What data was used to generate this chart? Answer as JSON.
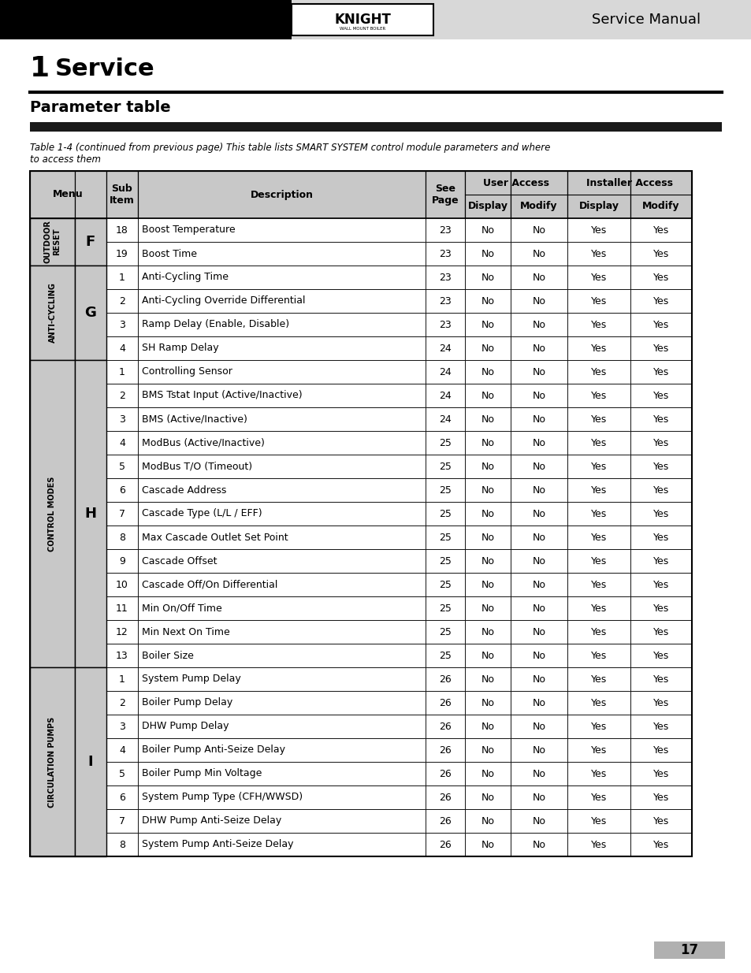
{
  "page_title": "1   Service",
  "section_title": "Parameter table",
  "table_caption": "Table 1-4 (continued from previous page) This table lists SMART SYSTEM control module parameters and where\nto access them",
  "header_bg": "#d0d0d0",
  "alt_row_bg": "#ffffff",
  "logo_text": "KNIGHT",
  "header_right": "Service Manual",
  "page_number": "17",
  "col_headers": [
    "Menu",
    "Sub\nItem",
    "Description",
    "See\nPage",
    "Display",
    "Modify",
    "Display",
    "Modify"
  ],
  "col_span_headers": [
    {
      "text": "User Access",
      "cols": [
        4,
        5
      ]
    },
    {
      "text": "Installer Access",
      "cols": [
        6,
        7
      ]
    }
  ],
  "rows": [
    {
      "menu": "OUTDOOR\nRESET",
      "sub_letter": "F",
      "sub_num": "18",
      "desc": "Boost Temperature",
      "page": "23",
      "ud": "No",
      "um": "No",
      "id": "Yes",
      "im": "Yes",
      "menu_span": 2,
      "letter_span": 2
    },
    {
      "menu": "",
      "sub_letter": "",
      "sub_num": "19",
      "desc": "Boost Time",
      "page": "23",
      "ud": "No",
      "um": "No",
      "id": "Yes",
      "im": "Yes",
      "menu_span": 0,
      "letter_span": 0
    },
    {
      "menu": "ANTI-CYCLING",
      "sub_letter": "G",
      "sub_num": "1",
      "desc": "Anti-Cycling Time",
      "page": "23",
      "ud": "No",
      "um": "No",
      "id": "Yes",
      "im": "Yes",
      "menu_span": 4,
      "letter_span": 4
    },
    {
      "menu": "",
      "sub_letter": "",
      "sub_num": "2",
      "desc": "Anti-Cycling Override Differential",
      "page": "23",
      "ud": "No",
      "um": "No",
      "id": "Yes",
      "im": "Yes",
      "menu_span": 0,
      "letter_span": 0
    },
    {
      "menu": "",
      "sub_letter": "",
      "sub_num": "3",
      "desc": "Ramp Delay (Enable, Disable)",
      "page": "23",
      "ud": "No",
      "um": "No",
      "id": "Yes",
      "im": "Yes",
      "menu_span": 0,
      "letter_span": 0
    },
    {
      "menu": "",
      "sub_letter": "",
      "sub_num": "4",
      "desc": "SH Ramp Delay",
      "page": "24",
      "ud": "No",
      "um": "No",
      "id": "Yes",
      "im": "Yes",
      "menu_span": 0,
      "letter_span": 0
    },
    {
      "menu": "CONTROL MODES",
      "sub_letter": "H",
      "sub_num": "1",
      "desc": "Controlling Sensor",
      "page": "24",
      "ud": "No",
      "um": "No",
      "id": "Yes",
      "im": "Yes",
      "menu_span": 13,
      "letter_span": 13
    },
    {
      "menu": "",
      "sub_letter": "",
      "sub_num": "2",
      "desc": "BMS Tstat Input (Active/Inactive)",
      "page": "24",
      "ud": "No",
      "um": "No",
      "id": "Yes",
      "im": "Yes",
      "menu_span": 0,
      "letter_span": 0
    },
    {
      "menu": "",
      "sub_letter": "",
      "sub_num": "3",
      "desc": "BMS (Active/Inactive)",
      "page": "24",
      "ud": "No",
      "um": "No",
      "id": "Yes",
      "im": "Yes",
      "menu_span": 0,
      "letter_span": 0
    },
    {
      "menu": "",
      "sub_letter": "",
      "sub_num": "4",
      "desc": "ModBus (Active/Inactive)",
      "page": "25",
      "ud": "No",
      "um": "No",
      "id": "Yes",
      "im": "Yes",
      "menu_span": 0,
      "letter_span": 0
    },
    {
      "menu": "",
      "sub_letter": "",
      "sub_num": "5",
      "desc": "ModBus T/O (Timeout)",
      "page": "25",
      "ud": "No",
      "um": "No",
      "id": "Yes",
      "im": "Yes",
      "menu_span": 0,
      "letter_span": 0
    },
    {
      "menu": "",
      "sub_letter": "",
      "sub_num": "6",
      "desc": "Cascade Address",
      "page": "25",
      "ud": "No",
      "um": "No",
      "id": "Yes",
      "im": "Yes",
      "menu_span": 0,
      "letter_span": 0
    },
    {
      "menu": "",
      "sub_letter": "",
      "sub_num": "7",
      "desc": "Cascade Type (L/L / EFF)",
      "page": "25",
      "ud": "No",
      "um": "No",
      "id": "Yes",
      "im": "Yes",
      "menu_span": 0,
      "letter_span": 0
    },
    {
      "menu": "",
      "sub_letter": "",
      "sub_num": "8",
      "desc": "Max Cascade Outlet Set Point",
      "page": "25",
      "ud": "No",
      "um": "No",
      "id": "Yes",
      "im": "Yes",
      "menu_span": 0,
      "letter_span": 0
    },
    {
      "menu": "",
      "sub_letter": "",
      "sub_num": "9",
      "desc": "Cascade Offset",
      "page": "25",
      "ud": "No",
      "um": "No",
      "id": "Yes",
      "im": "Yes",
      "menu_span": 0,
      "letter_span": 0
    },
    {
      "menu": "",
      "sub_letter": "",
      "sub_num": "10",
      "desc": "Cascade Off/On Differential",
      "page": "25",
      "ud": "No",
      "um": "No",
      "id": "Yes",
      "im": "Yes",
      "menu_span": 0,
      "letter_span": 0
    },
    {
      "menu": "",
      "sub_letter": "",
      "sub_num": "11",
      "desc": "Min On/Off Time",
      "page": "25",
      "ud": "No",
      "um": "No",
      "id": "Yes",
      "im": "Yes",
      "menu_span": 0,
      "letter_span": 0
    },
    {
      "menu": "",
      "sub_letter": "",
      "sub_num": "12",
      "desc": "Min Next On Time",
      "page": "25",
      "ud": "No",
      "um": "No",
      "id": "Yes",
      "im": "Yes",
      "menu_span": 0,
      "letter_span": 0
    },
    {
      "menu": "",
      "sub_letter": "",
      "sub_num": "13",
      "desc": "Boiler Size",
      "page": "25",
      "ud": "No",
      "um": "No",
      "id": "Yes",
      "im": "Yes",
      "menu_span": 0,
      "letter_span": 0
    },
    {
      "menu": "CIRCULATION PUMPS",
      "sub_letter": "I",
      "sub_num": "1",
      "desc": "System Pump Delay",
      "page": "26",
      "ud": "No",
      "um": "No",
      "id": "Yes",
      "im": "Yes",
      "menu_span": 8,
      "letter_span": 8
    },
    {
      "menu": "",
      "sub_letter": "",
      "sub_num": "2",
      "desc": "Boiler Pump Delay",
      "page": "26",
      "ud": "No",
      "um": "No",
      "id": "Yes",
      "im": "Yes",
      "menu_span": 0,
      "letter_span": 0
    },
    {
      "menu": "",
      "sub_letter": "",
      "sub_num": "3",
      "desc": "DHW Pump Delay",
      "page": "26",
      "ud": "No",
      "um": "No",
      "id": "Yes",
      "im": "Yes",
      "menu_span": 0,
      "letter_span": 0
    },
    {
      "menu": "",
      "sub_letter": "",
      "sub_num": "4",
      "desc": "Boiler Pump Anti-Seize Delay",
      "page": "26",
      "ud": "No",
      "um": "No",
      "id": "Yes",
      "im": "Yes",
      "menu_span": 0,
      "letter_span": 0
    },
    {
      "menu": "",
      "sub_letter": "",
      "sub_num": "5",
      "desc": "Boiler Pump Min Voltage",
      "page": "26",
      "ud": "No",
      "um": "No",
      "id": "Yes",
      "im": "Yes",
      "menu_span": 0,
      "letter_span": 0
    },
    {
      "menu": "",
      "sub_letter": "",
      "sub_num": "6",
      "desc": "System Pump Type (CFH/WWSD)",
      "page": "26",
      "ud": "No",
      "um": "No",
      "id": "Yes",
      "im": "Yes",
      "menu_span": 0,
      "letter_span": 0
    },
    {
      "menu": "",
      "sub_letter": "",
      "sub_num": "7",
      "desc": "DHW Pump Anti-Seize Delay",
      "page": "26",
      "ud": "No",
      "um": "No",
      "id": "Yes",
      "im": "Yes",
      "menu_span": 0,
      "letter_span": 0
    },
    {
      "menu": "",
      "sub_letter": "",
      "sub_num": "8",
      "desc": "System Pump Anti-Seize Delay",
      "page": "26",
      "ud": "No",
      "um": "No",
      "id": "Yes",
      "im": "Yes",
      "menu_span": 0,
      "letter_span": 0
    }
  ]
}
